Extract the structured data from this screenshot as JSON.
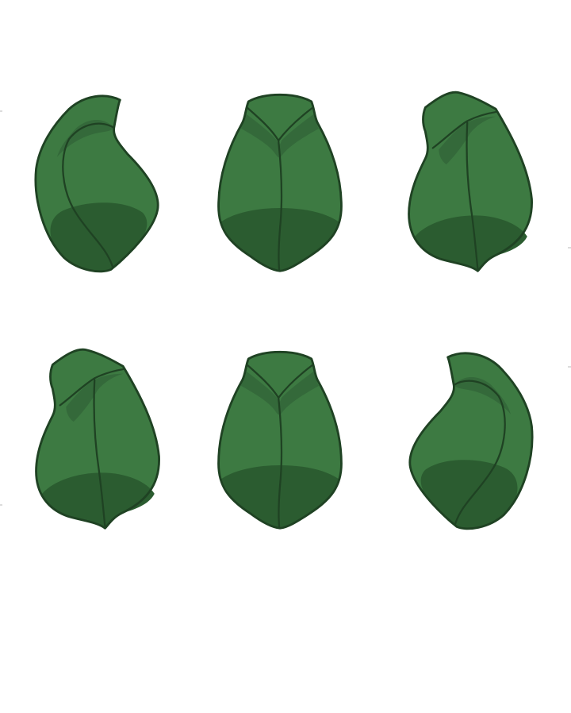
{
  "canvas": {
    "background": "#ffffff"
  },
  "palette": {
    "body": "#3d7a42",
    "shadow": "#2b5c30",
    "fold": "#34693a",
    "outline": "#1f4223"
  },
  "sprite_sheet": {
    "rows": 2,
    "columns": 3,
    "frames": [
      {
        "name": "leaf-curl-left",
        "pose": "curl-left",
        "row": 1,
        "column": 1
      },
      {
        "name": "leaf-front",
        "pose": "front",
        "row": 1,
        "column": 2
      },
      {
        "name": "leaf-tilt-left",
        "pose": "tilt-left",
        "row": 1,
        "column": 3
      },
      {
        "name": "leaf-tilt-left-alt",
        "pose": "tilt-left",
        "row": 2,
        "column": 1
      },
      {
        "name": "leaf-front-alt",
        "pose": "front",
        "row": 2,
        "column": 2
      },
      {
        "name": "leaf-curl-right",
        "pose": "curl-right",
        "row": 2,
        "column": 3
      }
    ]
  }
}
